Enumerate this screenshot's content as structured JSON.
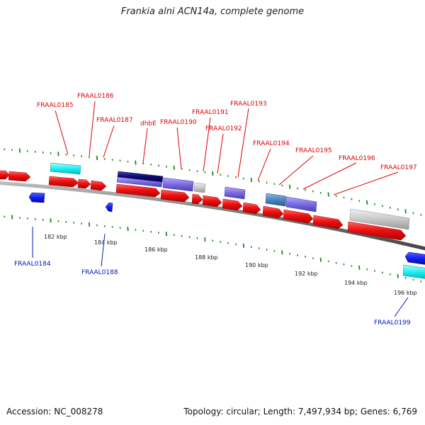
{
  "title": "Frankia alni ACN14a, complete genome",
  "footer": {
    "accession": "Accession: NC_008278",
    "summary": "Topology: circular; Length: 7,497,934 bp; Genes: 6,769"
  },
  "colors": {
    "forward_label": "#e00000",
    "reverse_label": "#0018c0",
    "cds_red": "#ee1111",
    "backbone": "#777777",
    "tick_green": "#1f8a1f"
  },
  "scale_ticks": [
    "182 kbp",
    "184 kbp",
    "186 kbp",
    "188 kbp",
    "190 kbp",
    "192 kbp",
    "194 kbp",
    "196 kbp"
  ],
  "forward_labels": [
    "FRAAL0185",
    "FRAAL0186",
    "FRAAL0187",
    "dhbE",
    "FRAAL0190",
    "FRAAL0191",
    "FRAAL0192",
    "FRAAL0193",
    "FRAAL0194",
    "FRAAL0195",
    "FRAAL0196",
    "FRAAL0197"
  ],
  "reverse_labels": [
    "FRAAL0184",
    "FRAAL0188",
    "FRAAL0199"
  ]
}
